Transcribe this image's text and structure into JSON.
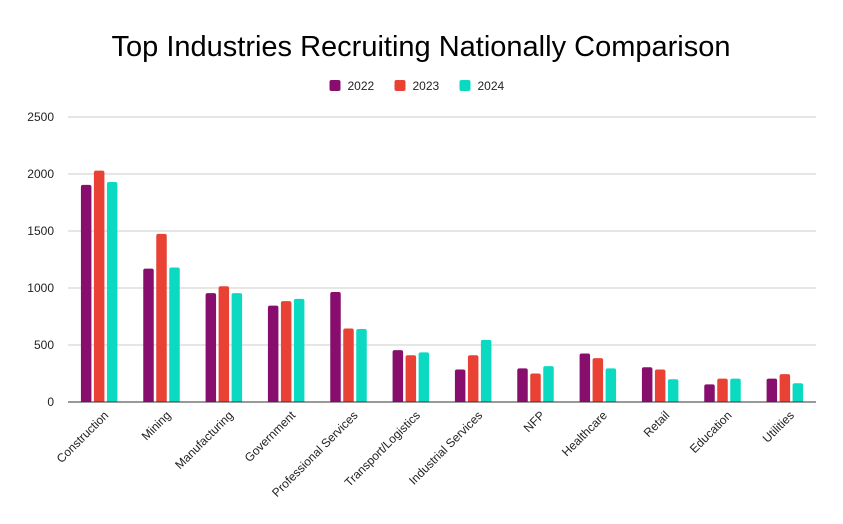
{
  "chart_data": {
    "type": "bar",
    "title": "Top Industries Recruiting Nationally Comparison",
    "xlabel": "",
    "ylabel": "",
    "categories": [
      "Construction",
      "Mining",
      "Manufacturing",
      "Government",
      "Professional Services",
      "Transport/Logistics",
      "Industrial Services",
      "NFP",
      "Healthcare",
      "Retail",
      "Education",
      "Utilities"
    ],
    "series": [
      {
        "name": "2022",
        "color": "#880E6E",
        "values": [
          1905,
          1170,
          955,
          845,
          965,
          455,
          285,
          295,
          425,
          305,
          155,
          205
        ]
      },
      {
        "name": "2023",
        "color": "#E94235",
        "values": [
          2030,
          1475,
          1015,
          885,
          645,
          410,
          410,
          250,
          385,
          285,
          205,
          245
        ]
      },
      {
        "name": "2024",
        "color": "#0BD9C2",
        "values": [
          1930,
          1180,
          955,
          905,
          640,
          435,
          545,
          315,
          295,
          200,
          205,
          165
        ]
      }
    ],
    "ylim": [
      0,
      2500
    ],
    "yticks": [
      0,
      500,
      1000,
      1500,
      2000,
      2500
    ],
    "grid": true,
    "legend_position": "top"
  }
}
